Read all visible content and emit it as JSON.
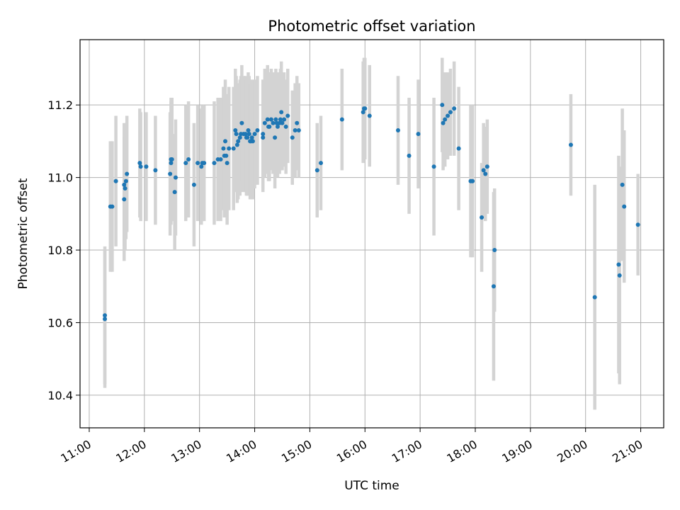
{
  "chart_data": {
    "type": "scatter",
    "title": "Photometric offset variation",
    "xlabel": "UTC time",
    "ylabel": "Photometric offset",
    "x_unit": "UTC hour of day",
    "x_ticks": [
      "11:00",
      "12:00",
      "13:00",
      "14:00",
      "15:00",
      "16:00",
      "17:00",
      "18:00",
      "19:00",
      "20:00",
      "21:00"
    ],
    "y_ticks": [
      "10.4",
      "10.6",
      "10.8",
      "11.0",
      "11.2"
    ],
    "xlim": [
      "10:50",
      "21:25"
    ],
    "ylim": [
      10.31,
      11.38
    ],
    "grid": true,
    "colors": {
      "points": "#1f77b4",
      "errorbars": "#d3d3d3",
      "grid": "#b0b0b0"
    },
    "series": [
      {
        "x": [
          "11:17",
          "11:17",
          "11:23",
          "11:25",
          "11:29",
          "11:38",
          "11:38",
          "11:39",
          "11:40",
          "11:41",
          "11:55",
          "11:56",
          "12:02",
          "12:12",
          "12:28",
          "12:29",
          "12:29",
          "12:30",
          "12:33",
          "12:34",
          "12:45",
          "12:48",
          "12:54",
          "12:58",
          "13:02",
          "13:03",
          "13:05",
          "13:16",
          "13:20",
          "13:23",
          "13:26",
          "13:27",
          "13:28",
          "13:29",
          "13:30",
          "13:32",
          "13:37",
          "13:39",
          "13:40",
          "13:41",
          "13:42",
          "13:44",
          "13:45",
          "13:46",
          "13:48",
          "13:50",
          "13:51",
          "13:52",
          "13:53",
          "13:54",
          "13:55",
          "13:56",
          "13:57",
          "13:58",
          "14:00",
          "14:03",
          "14:09",
          "14:09",
          "14:11",
          "14:14",
          "14:15",
          "14:16",
          "14:18",
          "14:20",
          "14:22",
          "14:23",
          "14:24",
          "14:25",
          "14:27",
          "14:28",
          "14:29",
          "14:30",
          "14:32",
          "14:34",
          "14:36",
          "14:41",
          "14:44",
          "14:46",
          "14:48",
          "15:08",
          "15:12",
          "15:35",
          "15:58",
          "15:59",
          "16:00",
          "16:05",
          "16:36",
          "16:48",
          "16:58",
          "17:15",
          "17:24",
          "17:25",
          "17:27",
          "17:30",
          "17:33",
          "17:37",
          "17:42",
          "17:55",
          "17:57",
          "18:07",
          "18:09",
          "18:11",
          "18:13",
          "18:20",
          "18:21",
          "19:44",
          "20:10",
          "20:36",
          "20:37",
          "20:40",
          "20:42",
          "20:57"
        ],
        "y": [
          10.61,
          10.62,
          10.92,
          10.92,
          10.99,
          10.98,
          10.94,
          10.97,
          10.99,
          11.01,
          11.04,
          11.03,
          11.03,
          11.02,
          11.01,
          11.04,
          11.05,
          11.05,
          10.96,
          11.0,
          11.04,
          11.05,
          10.98,
          11.04,
          11.03,
          11.04,
          11.04,
          11.04,
          11.05,
          11.05,
          11.08,
          11.06,
          11.1,
          11.06,
          11.04,
          11.08,
          11.08,
          11.13,
          11.12,
          11.09,
          11.1,
          11.11,
          11.12,
          11.15,
          11.12,
          11.12,
          11.11,
          11.11,
          11.13,
          11.12,
          11.1,
          11.1,
          11.11,
          11.1,
          11.12,
          11.13,
          11.12,
          11.11,
          11.15,
          11.16,
          11.14,
          11.14,
          11.16,
          11.15,
          11.11,
          11.16,
          11.15,
          11.14,
          11.15,
          11.16,
          11.18,
          11.15,
          11.16,
          11.14,
          11.17,
          11.11,
          11.13,
          11.15,
          11.13,
          11.02,
          11.04,
          11.16,
          11.18,
          11.19,
          11.19,
          11.17,
          11.13,
          11.06,
          11.12,
          11.03,
          11.2,
          11.15,
          11.16,
          11.17,
          11.18,
          11.19,
          11.08,
          10.99,
          10.99,
          10.89,
          11.02,
          11.01,
          11.03,
          10.7,
          10.8,
          11.09,
          10.67,
          10.76,
          10.73,
          10.98,
          10.92,
          10.87
        ],
        "yerr": [
          0.19,
          0.19,
          0.18,
          0.18,
          0.18,
          0.17,
          0.17,
          0.17,
          0.16,
          0.16,
          0.15,
          0.15,
          0.15,
          0.15,
          0.17,
          0.17,
          0.17,
          0.17,
          0.16,
          0.16,
          0.16,
          0.16,
          0.17,
          0.16,
          0.16,
          0.16,
          0.16,
          0.17,
          0.17,
          0.17,
          0.17,
          0.17,
          0.17,
          0.17,
          0.17,
          0.17,
          0.17,
          0.17,
          0.16,
          0.16,
          0.16,
          0.16,
          0.16,
          0.16,
          0.16,
          0.16,
          0.16,
          0.16,
          0.16,
          0.16,
          0.16,
          0.16,
          0.16,
          0.16,
          0.15,
          0.15,
          0.15,
          0.15,
          0.15,
          0.15,
          0.15,
          0.15,
          0.14,
          0.14,
          0.14,
          0.14,
          0.14,
          0.14,
          0.14,
          0.14,
          0.14,
          0.13,
          0.13,
          0.13,
          0.13,
          0.13,
          0.13,
          0.13,
          0.13,
          0.13,
          0.13,
          0.14,
          0.14,
          0.14,
          0.14,
          0.14,
          0.15,
          0.16,
          0.15,
          0.19,
          0.13,
          0.13,
          0.13,
          0.12,
          0.12,
          0.13,
          0.17,
          0.21,
          0.21,
          0.15,
          0.13,
          0.13,
          0.13,
          0.26,
          0.17,
          0.14,
          0.31,
          0.3,
          0.3,
          0.21,
          0.21,
          0.14
        ]
      }
    ]
  }
}
